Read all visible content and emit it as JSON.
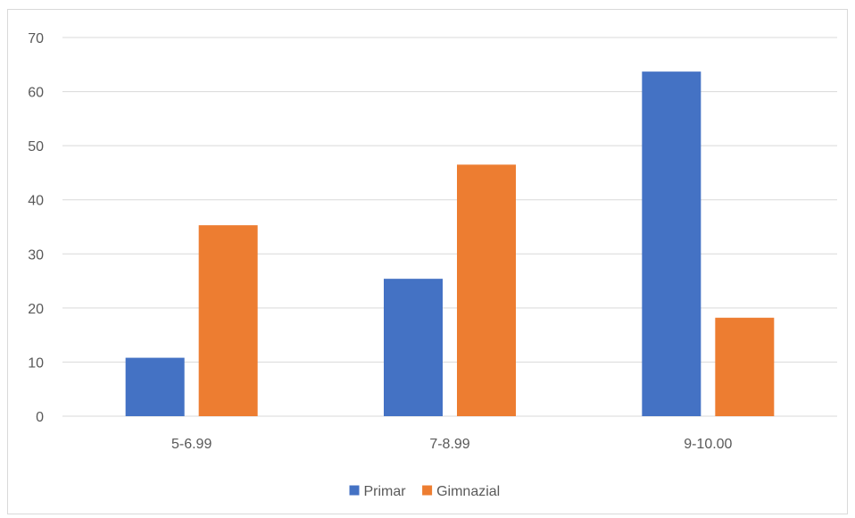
{
  "chart_data": {
    "type": "bar",
    "categories": [
      "5-6.99",
      "7-8.99",
      "9-10.00"
    ],
    "series": [
      {
        "name": "Primar",
        "values": [
          10.8,
          25.4,
          63.7
        ],
        "color": "#4472C4"
      },
      {
        "name": "Gimnazial",
        "values": [
          35.3,
          46.5,
          18.2
        ],
        "color": "#ED7D31"
      }
    ],
    "ylim": [
      0,
      70
    ],
    "yticks": [
      0,
      10,
      20,
      30,
      40,
      50,
      60,
      70
    ],
    "grid": true,
    "legend_position": "bottom",
    "gridline_color": "#d9d9d9",
    "axis_color": "#d9d9d9",
    "title": "",
    "xlabel": "",
    "ylabel": ""
  }
}
